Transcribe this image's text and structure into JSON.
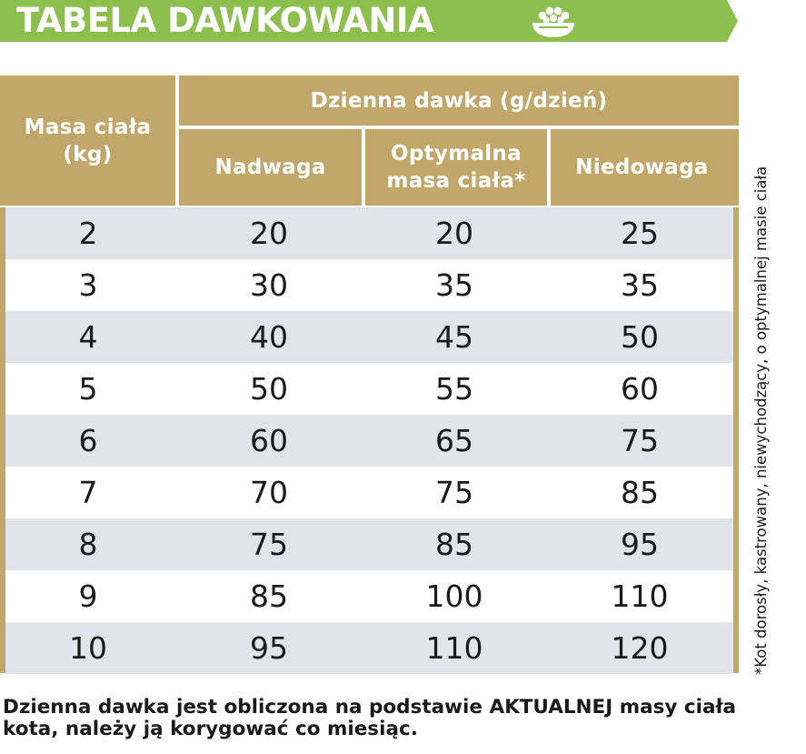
{
  "header": {
    "title": "TABELA DAWKOWANIA",
    "icon": "bowl-icon"
  },
  "table": {
    "col_mass": "Masa ciała\n(kg)",
    "group_header": "Dzienna dawka (g/dzień)",
    "col_over": "Nadwaga",
    "col_opt": "Optymalna\nmasa ciała*",
    "col_under": "Niedowaga",
    "rows": [
      {
        "mass": "2",
        "over": "20",
        "opt": "20",
        "under": "25"
      },
      {
        "mass": "3",
        "over": "30",
        "opt": "35",
        "under": "35"
      },
      {
        "mass": "4",
        "over": "40",
        "opt": "45",
        "under": "50"
      },
      {
        "mass": "5",
        "over": "50",
        "opt": "55",
        "under": "60"
      },
      {
        "mass": "6",
        "over": "60",
        "opt": "65",
        "under": "75"
      },
      {
        "mass": "7",
        "over": "70",
        "opt": "75",
        "under": "85"
      },
      {
        "mass": "8",
        "over": "75",
        "opt": "85",
        "under": "95"
      },
      {
        "mass": "9",
        "over": "85",
        "opt": "100",
        "under": "110"
      },
      {
        "mass": "10",
        "over": "95",
        "opt": "110",
        "under": "120"
      }
    ]
  },
  "side_note": "*Kot dorosły, kastrowany, niewychodzący, o optymalnej masie ciała",
  "footer": "Dzienna dawka jest obliczona na podstawie AKTUALNEJ masy ciała kota, należy ją korygować co miesiąc.",
  "colors": {
    "banner": "#8dbf4f",
    "table_header": "#c1a86a",
    "row_shade": "#e1e4e8"
  }
}
